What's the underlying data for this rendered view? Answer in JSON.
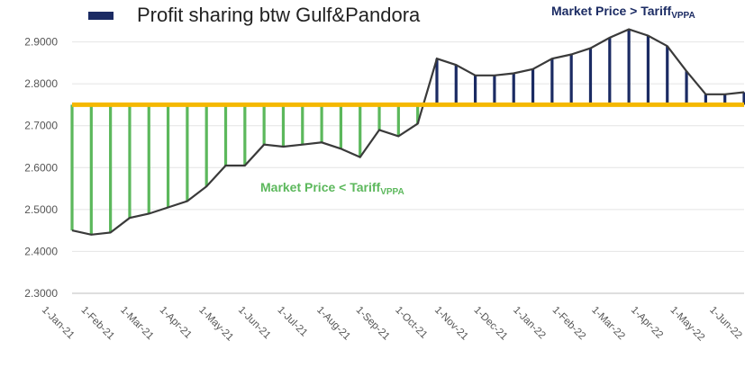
{
  "legend": {
    "label": "Profit sharing btw Gulf&Pandora",
    "color": "#1b2b63"
  },
  "annotations": {
    "above": {
      "text": "Market Price > Tariff",
      "sub": "VPPA",
      "color": "#1b2b63"
    },
    "below": {
      "text": "Market Price < Tariff",
      "sub": "VPPA",
      "color": "#5cb85c"
    }
  },
  "chart_data": {
    "type": "line",
    "ylim": [
      2.3,
      3.0
    ],
    "yticks": [
      "2.3000",
      "2.4000",
      "2.5000",
      "2.6000",
      "2.7000",
      "2.8000",
      "2.9000"
    ],
    "tariff": 2.75,
    "x_tick_labels": [
      "1-Jan-21",
      "1-Feb-21",
      "1-Mar-21",
      "1-Apr-21",
      "1-May-21",
      "1-Jun-21",
      "1-Jul-21",
      "1-Aug-21",
      "1-Sep-21",
      "1-Oct-21",
      "1-Nov-21",
      "1-Dec-21",
      "1-Jan-22",
      "1-Feb-22",
      "1-Mar-22",
      "1-Apr-22",
      "1-May-22",
      "1-Jun-22"
    ],
    "series": [
      {
        "values": [
          2.45,
          2.44,
          2.445,
          2.48,
          2.49,
          2.505,
          2.52,
          2.555,
          2.605,
          2.605,
          2.655,
          2.65,
          2.655,
          2.66,
          2.645,
          2.625,
          2.69,
          2.675,
          2.705,
          2.86,
          2.845,
          2.82,
          2.82,
          2.825,
          2.835,
          2.86,
          2.87,
          2.885,
          2.91,
          2.93,
          2.915,
          2.89,
          2.83,
          2.775,
          2.775,
          2.78
        ]
      }
    ],
    "colors": {
      "line": "#3a3a3a",
      "tariff": "#f5b800",
      "above": "#1b2b63",
      "below": "#5cb85c"
    }
  }
}
